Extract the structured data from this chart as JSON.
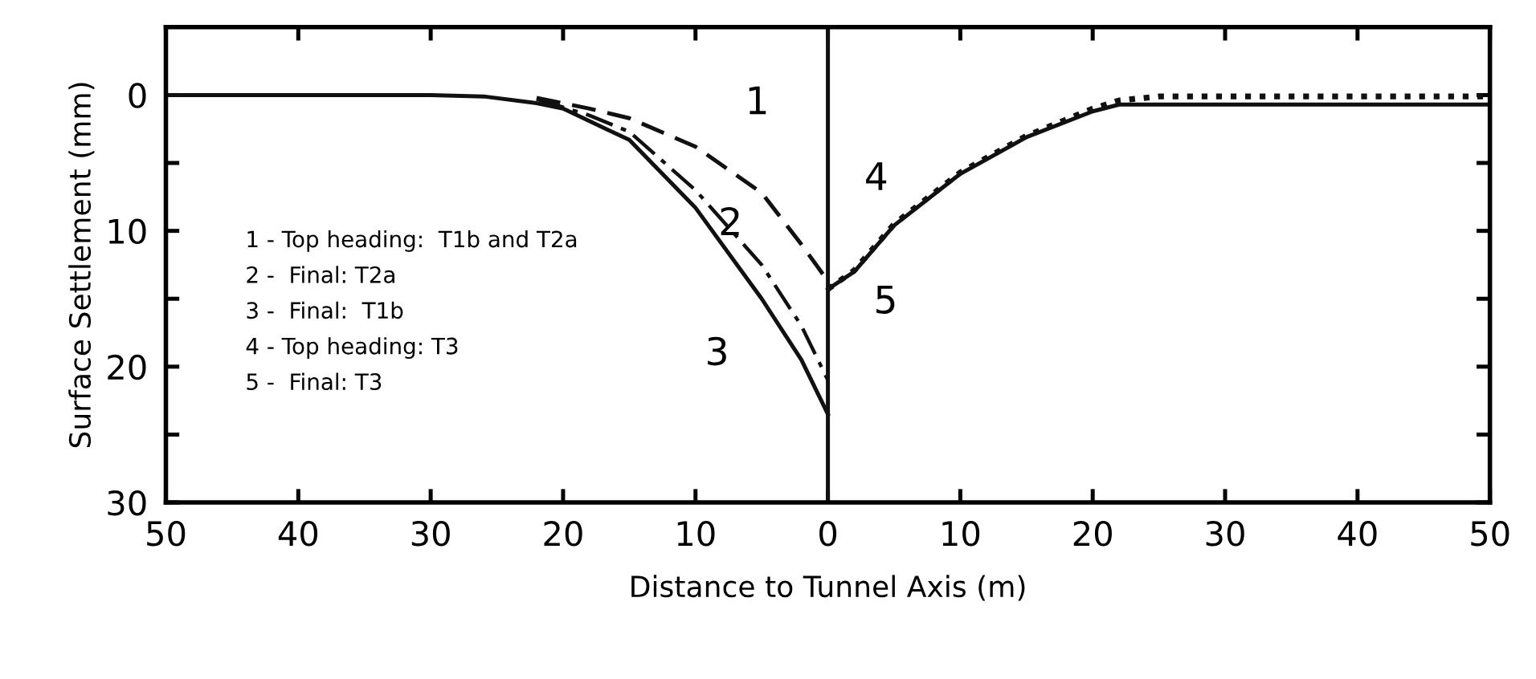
{
  "chart_data": {
    "type": "line",
    "xlabel": "Distance to Tunnel Axis (m)",
    "ylabel": "Surface Settlement (mm)",
    "series": [
      {
        "name": "1",
        "color": "#111111",
        "line_style": "dashed",
        "x": [
          -22,
          -18,
          -15,
          -10,
          -5,
          -2,
          0
        ],
        "values": [
          0.2,
          1.0,
          1.7,
          3.8,
          7.2,
          11.0,
          13.7
        ]
      },
      {
        "name": "2",
        "color": "#111111",
        "line_style": "dashdot",
        "x": [
          -22,
          -18,
          -15,
          -10,
          -5,
          -2,
          0
        ],
        "values": [
          0.3,
          1.5,
          2.7,
          7.0,
          12.5,
          17.0,
          21.0
        ]
      },
      {
        "name": "3",
        "color": "#111111",
        "line_style": "solid",
        "x": [
          -50,
          -30,
          -26,
          -22,
          -20,
          -15,
          -10,
          -5,
          -2,
          0
        ],
        "values": [
          0,
          0,
          0.1,
          0.6,
          1.0,
          3.3,
          8.3,
          15.0,
          19.5,
          23.5
        ]
      },
      {
        "name": "4",
        "color": "#111111",
        "line_style": "dotted",
        "x": [
          0,
          2,
          5,
          10,
          15,
          20,
          22,
          25,
          30,
          50
        ],
        "values": [
          14.3,
          12.9,
          9.5,
          5.7,
          3.0,
          1.0,
          0.4,
          0.1,
          0.1,
          0.1
        ]
      },
      {
        "name": "5",
        "color": "#111111",
        "line_style": "solid",
        "x": [
          0,
          2,
          5,
          10,
          15,
          20,
          22,
          25,
          30,
          50
        ],
        "values": [
          14.3,
          13.0,
          9.6,
          5.8,
          3.1,
          1.2,
          0.7,
          0.7,
          0.7,
          0.7
        ]
      }
    ],
    "annotations": [
      "1 - Top heading:  T1b and T2a",
      "2 -  Final: T2a",
      "3 -  Final:  T1b",
      "4 - Top heading: T3",
      "5 -  Final: T3"
    ],
    "ref_lines": [
      {
        "axis": "x",
        "value": 0,
        "color": "#111111"
      }
    ],
    "xlim": [
      -50,
      50
    ],
    "xticks": [
      {
        "value": -50,
        "label": "50"
      },
      {
        "value": -40,
        "label": "40"
      },
      {
        "value": -30,
        "label": "30"
      },
      {
        "value": -20,
        "label": "20"
      },
      {
        "value": -10,
        "label": "10"
      },
      0,
      10,
      20,
      30,
      40,
      50
    ],
    "ylim": [
      30,
      -5
    ],
    "yticks": [
      0,
      {
        "value": 5,
        "label": null
      },
      10,
      {
        "value": 15,
        "label": null
      },
      20,
      {
        "value": 25,
        "label": null
      },
      30
    ],
    "grid": false,
    "legend": false,
    "marker": "none"
  }
}
